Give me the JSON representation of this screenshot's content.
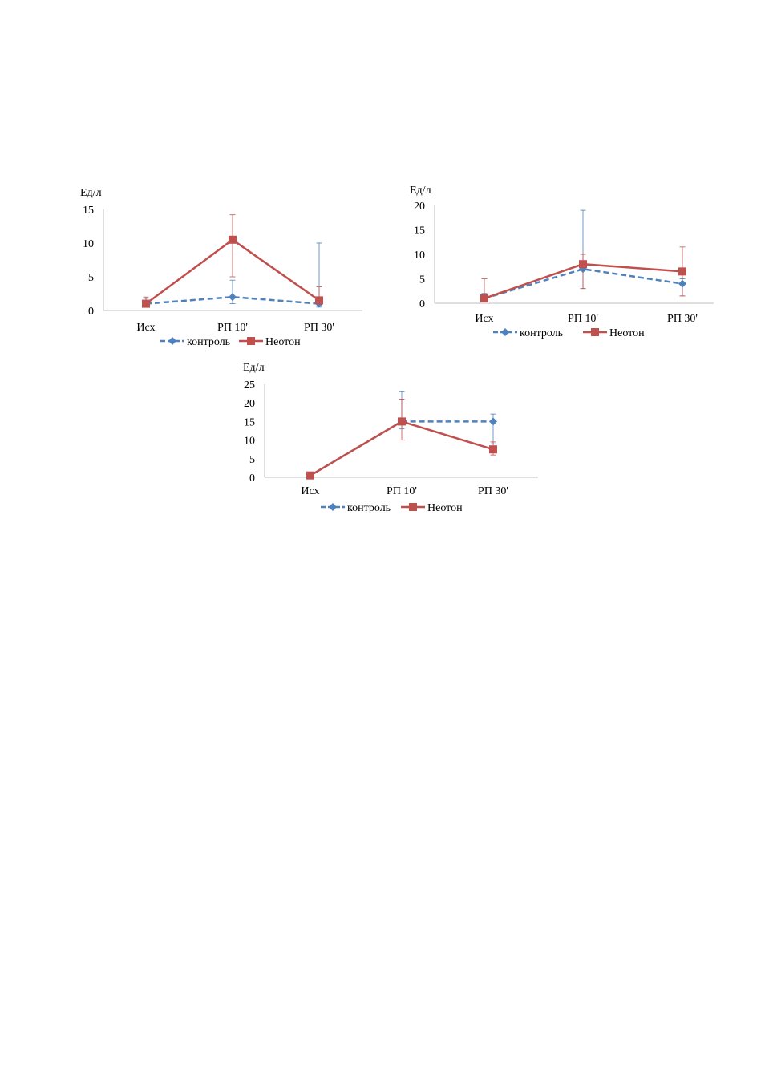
{
  "chart_data": [
    {
      "type": "line",
      "ylabel": "Ед/л",
      "categories": [
        "Исх",
        "РП 10'",
        "РП 30'"
      ],
      "ylim": [
        0,
        15
      ],
      "yticks": [
        0,
        5,
        10,
        15
      ],
      "grid": false,
      "legend": "bottom",
      "series": [
        {
          "name": "контроль",
          "color": "#4F81BD",
          "style": "dashed",
          "marker": "diamond",
          "values": [
            1,
            2,
            1
          ],
          "err_high": [
            1.8,
            4.5,
            10
          ],
          "err_low": [
            0.5,
            1,
            0.5
          ]
        },
        {
          "name": "Неотон",
          "color": "#C0504D",
          "style": "solid",
          "marker": "square",
          "values": [
            1,
            10.5,
            1.5
          ],
          "err_high": [
            2,
            14.2,
            3.5
          ],
          "err_low": [
            0.5,
            5,
            1
          ]
        }
      ]
    },
    {
      "type": "line",
      "ylabel": "Ед/л",
      "categories": [
        "Исх",
        "РП 10'",
        "РП 30'"
      ],
      "ylim": [
        0,
        20
      ],
      "yticks": [
        0,
        5,
        10,
        15,
        20
      ],
      "grid": false,
      "legend": "bottom",
      "series": [
        {
          "name": "контроль",
          "color": "#4F81BD",
          "style": "dashed",
          "marker": "diamond",
          "values": [
            1,
            7,
            4
          ],
          "err_high": [
            2,
            19,
            5
          ],
          "err_low": [
            0.5,
            3,
            1.5
          ]
        },
        {
          "name": "Неотон",
          "color": "#C0504D",
          "style": "solid",
          "marker": "square",
          "values": [
            1,
            8,
            6.5
          ],
          "err_high": [
            5,
            10,
            11.5
          ],
          "err_low": [
            0.5,
            3,
            1.5
          ]
        }
      ]
    },
    {
      "type": "line",
      "ylabel": "Ед/л",
      "categories": [
        "Исх",
        "РП 10'",
        "РП 30'"
      ],
      "ylim": [
        0,
        25
      ],
      "yticks": [
        0,
        5,
        10,
        15,
        20,
        25
      ],
      "grid": false,
      "legend": "bottom",
      "series": [
        {
          "name": "контроль",
          "color": "#4F81BD",
          "style": "dashed",
          "marker": "diamond",
          "values": [
            0.5,
            15,
            15
          ],
          "err_high": [
            1,
            23,
            17
          ],
          "err_low": [
            0.3,
            13,
            9
          ]
        },
        {
          "name": "Неотон",
          "color": "#C0504D",
          "style": "solid",
          "marker": "square",
          "values": [
            0.5,
            15,
            7.5
          ],
          "err_high": [
            1,
            21,
            9.5
          ],
          "err_low": [
            0.3,
            10,
            6
          ]
        }
      ]
    }
  ]
}
